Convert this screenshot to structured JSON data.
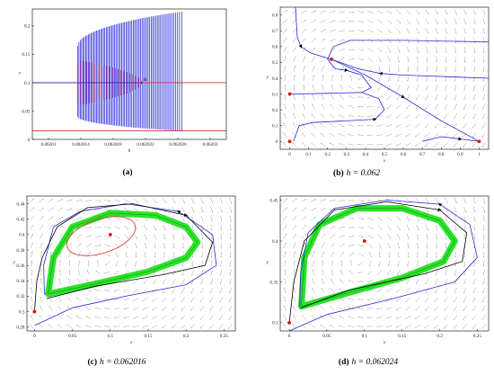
{
  "chart_data": [
    {
      "id": "a",
      "type": "bifurcation",
      "caption": "(a)",
      "xlabel": "h",
      "ylabel": "x",
      "xlim": [
        0.062008,
        0.062032
      ],
      "ylim": [
        0,
        0.23
      ],
      "xticks": [
        "0.06201",
        "0.062014",
        "0.062018",
        "0.062022",
        "0.062026",
        "0.06203"
      ],
      "xtick_values": [
        0.06201,
        0.062014,
        0.062018,
        0.062022,
        0.062026,
        0.06203
      ],
      "yticks": [
        "0",
        "0.05",
        "0.1",
        "0.15",
        "0.2"
      ],
      "ytick_values": [
        0,
        0.05,
        0.1,
        0.15,
        0.2
      ],
      "equilibrium_lines": [
        {
          "color": "#e03030",
          "y": 0.1,
          "note": "upper"
        },
        {
          "color": "#e03030",
          "y": 0.015,
          "note": "lower"
        },
        {
          "color": "#2b2bd6",
          "y": 0.1,
          "x_end": 0.062021,
          "note": "blue segment"
        }
      ],
      "stable_cycle_band": {
        "color": "#1a1adc",
        "h_start": 0.0620136,
        "h_end": 0.0620265,
        "x_min_start": 0.04,
        "x_max_start": 0.165,
        "x_min_end": 0.015,
        "x_max_end": 0.225
      },
      "unstable_cycle_band": {
        "color": "#b0307a",
        "h_start": 0.0620136,
        "h_end": 0.0620215,
        "x_min_start": 0.065,
        "x_max_start": 0.14
      },
      "hopf_point": {
        "label": "H",
        "h": 0.0620215,
        "x": 0.1
      }
    },
    {
      "id": "b",
      "type": "phase-portrait",
      "caption_label": "(b)",
      "caption_text": "h = 0.062",
      "xlabel": "x",
      "ylabel": "y",
      "xlim": [
        -0.05,
        1.05
      ],
      "ylim": [
        -0.05,
        0.85
      ],
      "xticks": [
        "0",
        "0.1",
        "0.2",
        "0.3",
        "0.4",
        "0.5",
        "0.6",
        "0.7",
        "0.8",
        "0.9",
        "1"
      ],
      "xtick_values": [
        0,
        0.1,
        0.2,
        0.3,
        0.4,
        0.5,
        0.6,
        0.7,
        0.8,
        0.9,
        1
      ],
      "yticks": [
        "0",
        "0.1",
        "0.2",
        "0.3",
        "0.4",
        "0.5",
        "0.6",
        "0.7",
        "0.8"
      ],
      "ytick_values": [
        0,
        0.1,
        0.2,
        0.3,
        0.4,
        0.5,
        0.6,
        0.7,
        0.8
      ],
      "equilibria": [
        [
          0,
          0
        ],
        [
          0,
          0.3
        ],
        [
          0.22,
          0.52
        ],
        [
          1,
          0
        ]
      ],
      "trajectories": [
        {
          "color": "#2b2bd6",
          "points": [
            [
              0.03,
              0.85
            ],
            [
              0.04,
              0.66
            ],
            [
              0.06,
              0.6
            ],
            [
              0.11,
              0.56
            ],
            [
              0.22,
              0.52
            ]
          ]
        },
        {
          "color": "#2b2bd6",
          "points": [
            [
              1.05,
              0.63
            ],
            [
              0.6,
              0.64
            ],
            [
              0.32,
              0.64
            ],
            [
              0.23,
              0.6
            ],
            [
              0.2,
              0.52
            ],
            [
              0.24,
              0.46
            ],
            [
              0.3,
              0.45
            ],
            [
              0.38,
              0.42
            ],
            [
              0.43,
              0.34
            ],
            [
              0.38,
              0.31
            ],
            [
              0.22,
              0.305
            ],
            [
              0,
              0.3
            ]
          ]
        },
        {
          "color": "#2b2bd6",
          "points": [
            [
              1.05,
              0.4
            ],
            [
              0.6,
              0.42
            ],
            [
              0.48,
              0.43
            ],
            [
              0.36,
              0.46
            ],
            [
              0.22,
              0.52
            ]
          ]
        },
        {
          "color": "#2b2bd6",
          "points": [
            [
              0.22,
              0.52
            ],
            [
              0.4,
              0.42
            ],
            [
              0.6,
              0.28
            ],
            [
              0.8,
              0.13
            ],
            [
              1,
              0
            ]
          ]
        },
        {
          "color": "#2b2bd6",
          "points": [
            [
              0.02,
              0.0
            ],
            [
              0.05,
              0.1
            ],
            [
              0.12,
              0.12
            ],
            [
              0.3,
              0.13
            ],
            [
              0.45,
              0.14
            ],
            [
              0.5,
              0.2
            ],
            [
              0.47,
              0.27
            ],
            [
              0.38,
              0.31
            ]
          ]
        },
        {
          "color": "#2b2bd6",
          "points": [
            [
              0.7,
              0.0
            ],
            [
              0.8,
              0.03
            ],
            [
              0.9,
              0.015
            ],
            [
              1,
              0
            ]
          ]
        }
      ]
    },
    {
      "id": "c",
      "type": "phase-portrait",
      "caption_label": "(c)",
      "caption_text": "h = 0.062016",
      "xlabel": "x",
      "ylabel": "y",
      "xlim": [
        -0.01,
        0.265
      ],
      "ylim": [
        0.275,
        0.45
      ],
      "xticks": [
        "0",
        "0.05",
        "0.1",
        "0.15",
        "0.2",
        "0.25"
      ],
      "xtick_values": [
        0,
        0.05,
        0.1,
        0.15,
        0.2,
        0.25
      ],
      "yticks": [
        "0.28",
        "0.3",
        "0.32",
        "0.34",
        "0.36",
        "0.38",
        "0.4",
        "0.42",
        "0.44"
      ],
      "ytick_values": [
        0.28,
        0.3,
        0.32,
        0.34,
        0.36,
        0.38,
        0.4,
        0.42,
        0.44
      ],
      "equilibria": [
        [
          0,
          0.3
        ],
        [
          0.1,
          0.4
        ]
      ],
      "unstable_cycle": {
        "color": "#e03030",
        "center": [
          0.088,
          0.398
        ],
        "rx": 0.047,
        "ry": 0.022,
        "rotation_deg": -18
      },
      "stable_cycle_band": {
        "color": "#1fe01f",
        "points": [
          [
            0.018,
            0.323
          ],
          [
            0.08,
            0.336
          ],
          [
            0.15,
            0.352
          ],
          [
            0.2,
            0.37
          ],
          [
            0.215,
            0.39
          ],
          [
            0.2,
            0.41
          ],
          [
            0.16,
            0.425
          ],
          [
            0.1,
            0.428
          ],
          [
            0.05,
            0.41
          ],
          [
            0.025,
            0.37
          ],
          [
            0.018,
            0.323
          ]
        ]
      },
      "trajectories": [
        {
          "color": "#2b2bd6",
          "points": [
            [
              0.0,
              0.282
            ],
            [
              0.05,
              0.305
            ],
            [
              0.12,
              0.32
            ],
            [
              0.2,
              0.335
            ],
            [
              0.24,
              0.36
            ],
            [
              0.235,
              0.4
            ],
            [
              0.19,
              0.43
            ],
            [
              0.12,
              0.44
            ],
            [
              0.06,
              0.43
            ],
            [
              0.025,
              0.41
            ],
            [
              0.012,
              0.36
            ],
            [
              0.013,
              0.322
            ]
          ]
        },
        {
          "color": "#000000",
          "points": [
            [
              0.0,
              0.3
            ],
            [
              0.003,
              0.34
            ],
            [
              0.01,
              0.37
            ],
            [
              0.03,
              0.41
            ],
            [
              0.07,
              0.435
            ],
            [
              0.13,
              0.44
            ],
            [
              0.2,
              0.425
            ],
            [
              0.235,
              0.39
            ],
            [
              0.225,
              0.36
            ],
            [
              0.17,
              0.348
            ],
            [
              0.08,
              0.333
            ],
            [
              0.016,
              0.317
            ]
          ]
        }
      ]
    },
    {
      "id": "d",
      "type": "phase-portrait",
      "caption_label": "(d)",
      "caption_text": "h = 0.062024",
      "xlabel": "x",
      "ylabel": "y",
      "xlim": [
        -0.012,
        0.265
      ],
      "ylim": [
        0.29,
        0.455
      ],
      "xticks": [
        "0",
        "0.05",
        "0.1",
        "0.15",
        "0.2",
        "0.25"
      ],
      "xtick_values": [
        0,
        0.05,
        0.1,
        0.15,
        0.2,
        0.25
      ],
      "yticks": [
        "0.3",
        "0.35",
        "0.4",
        "0.45"
      ],
      "ytick_values": [
        0.3,
        0.35,
        0.4,
        0.45
      ],
      "equilibria": [
        [
          0,
          0.3
        ],
        [
          0.1,
          0.4
        ]
      ],
      "stable_cycle_band": {
        "color": "#1fe01f",
        "points": [
          [
            0.016,
            0.32
          ],
          [
            0.08,
            0.337
          ],
          [
            0.15,
            0.355
          ],
          [
            0.205,
            0.375
          ],
          [
            0.22,
            0.4
          ],
          [
            0.2,
            0.425
          ],
          [
            0.15,
            0.44
          ],
          [
            0.09,
            0.44
          ],
          [
            0.04,
            0.42
          ],
          [
            0.02,
            0.38
          ],
          [
            0.016,
            0.32
          ]
        ]
      },
      "trajectories": [
        {
          "color": "#2b2bd6",
          "points": [
            [
              0.0,
              0.29
            ],
            [
              0.05,
              0.31
            ],
            [
              0.14,
              0.33
            ],
            [
              0.22,
              0.35
            ],
            [
              0.25,
              0.38
            ],
            [
              0.24,
              0.42
            ],
            [
              0.2,
              0.445
            ],
            [
              0.13,
              0.45
            ],
            [
              0.06,
              0.44
            ],
            [
              0.025,
              0.41
            ],
            [
              0.015,
              0.36
            ],
            [
              0.014,
              0.32
            ]
          ]
        },
        {
          "color": "#000000",
          "points": [
            [
              0.0,
              0.3
            ],
            [
              0.006,
              0.35
            ],
            [
              0.02,
              0.4
            ],
            [
              0.06,
              0.438
            ],
            [
              0.13,
              0.448
            ],
            [
              0.2,
              0.438
            ],
            [
              0.236,
              0.41
            ],
            [
              0.23,
              0.375
            ],
            [
              0.18,
              0.36
            ],
            [
              0.08,
              0.34
            ],
            [
              0.015,
              0.318
            ]
          ]
        }
      ]
    }
  ]
}
